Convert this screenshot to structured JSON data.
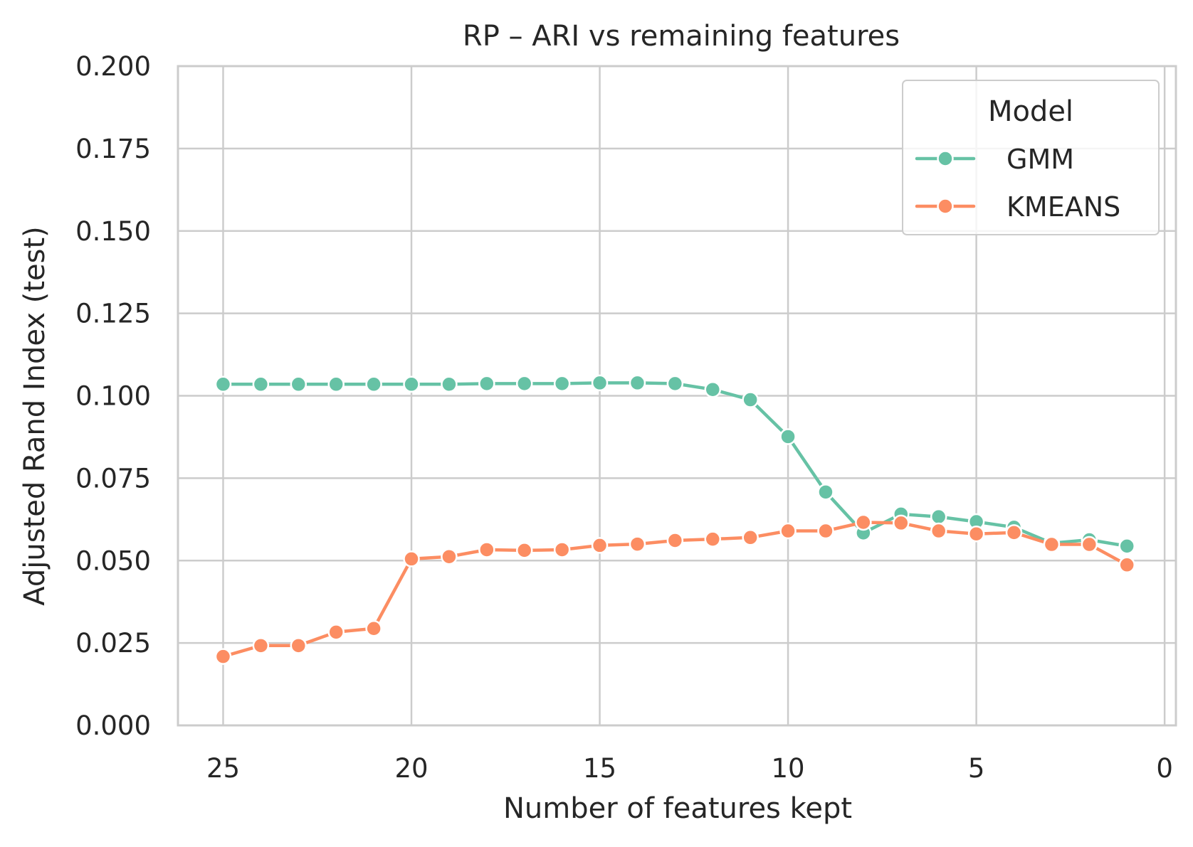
{
  "chart_data": {
    "type": "line",
    "title": "RP – ARI vs remaining features",
    "xlabel": "Number of features kept",
    "ylabel": "Adjusted Rand Index (test)",
    "xlim": [
      26.2,
      -0.3
    ],
    "x_inverted": true,
    "ylim": [
      0,
      0.2
    ],
    "xticks": [
      25,
      20,
      15,
      10,
      5,
      0
    ],
    "yticks": [
      0.0,
      0.025,
      0.05,
      0.075,
      0.1,
      0.125,
      0.15,
      0.175,
      0.2
    ],
    "ytick_labels": [
      "0.000",
      "0.025",
      "0.050",
      "0.075",
      "0.100",
      "0.125",
      "0.150",
      "0.175",
      "0.200"
    ],
    "grid": true,
    "legend_title": "Model",
    "legend_position": "top-right",
    "x": [
      25,
      24,
      23,
      22,
      21,
      20,
      19,
      18,
      17,
      16,
      15,
      14,
      13,
      12,
      11,
      10,
      9,
      8,
      7,
      6,
      5,
      4,
      3,
      2,
      1
    ],
    "series": [
      {
        "name": "GMM",
        "color": "#66c2a5",
        "values": [
          0.1035,
          0.1035,
          0.1035,
          0.1035,
          0.1035,
          0.1035,
          0.1035,
          0.1037,
          0.1037,
          0.1037,
          0.1039,
          0.1039,
          0.1037,
          0.1019,
          0.0988,
          0.0876,
          0.0708,
          0.0584,
          0.0641,
          0.0633,
          0.0618,
          0.0601,
          0.0553,
          0.0563,
          0.0544
        ]
      },
      {
        "name": "KMEANS",
        "color": "#fc8d62",
        "values": [
          0.0209,
          0.0242,
          0.0242,
          0.0283,
          0.0294,
          0.0505,
          0.0512,
          0.0533,
          0.0531,
          0.0533,
          0.0546,
          0.055,
          0.0561,
          0.0565,
          0.057,
          0.059,
          0.059,
          0.0616,
          0.0614,
          0.059,
          0.0581,
          0.0585,
          0.0549,
          0.0549,
          0.0487
        ]
      }
    ]
  }
}
